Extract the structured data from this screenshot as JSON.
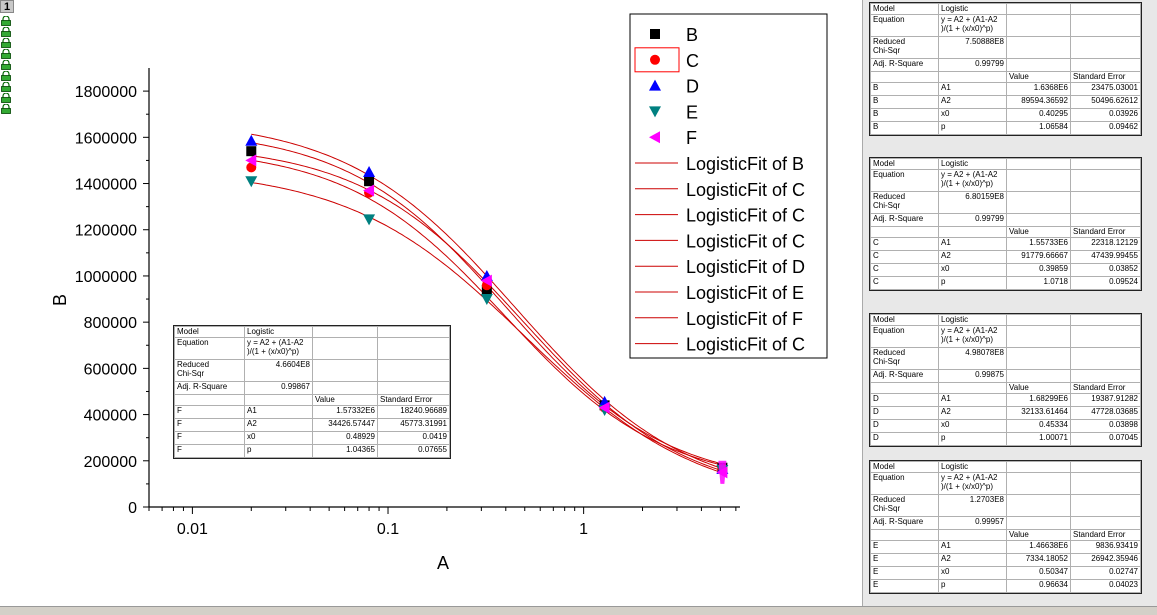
{
  "page_tab": "1",
  "chart_data": {
    "type": "scatter",
    "xlabel": "A",
    "ylabel": "B",
    "xscale": "log",
    "xlim": [
      0.006,
      6.3
    ],
    "ylim": [
      0,
      1900000
    ],
    "x_ticks": [
      "0.01",
      "0.1",
      "1"
    ],
    "y_ticks": [
      "0",
      "200000",
      "400000",
      "600000",
      "800000",
      "1000000",
      "1200000",
      "1400000",
      "1600000",
      "1800000"
    ],
    "series": [
      {
        "name": "B",
        "marker": "square",
        "color": "#000000",
        "x": [
          0.02,
          0.08,
          0.32,
          1.28,
          5.12
        ],
        "y": [
          1540000,
          1410000,
          940000,
          440000,
          170000
        ]
      },
      {
        "name": "C",
        "marker": "circle",
        "color": "#ff0000",
        "x": [
          0.02,
          0.08,
          0.32,
          1.28,
          5.12
        ],
        "y": [
          1470000,
          1360000,
          960000,
          430000,
          165000
        ]
      },
      {
        "name": "D",
        "marker": "triangle-up",
        "color": "#0000ff",
        "x": [
          0.02,
          0.08,
          0.32,
          1.28,
          5.12
        ],
        "y": [
          1585000,
          1450000,
          1000000,
          455000,
          165000
        ]
      },
      {
        "name": "E",
        "marker": "triangle-down",
        "color": "#008080",
        "x": [
          0.02,
          0.08,
          0.32,
          1.28,
          5.12
        ],
        "y": [
          1410000,
          1245000,
          900000,
          420000,
          160000
        ]
      },
      {
        "name": "F",
        "marker": "triangle-left",
        "color": "#ff00ff",
        "x": [
          0.02,
          0.08,
          0.32,
          1.28,
          5.12
        ],
        "y": [
          1500000,
          1370000,
          980000,
          430000,
          150000
        ]
      }
    ],
    "fits": [
      {
        "name": "LogisticFit of B",
        "A1": 1636800,
        "A2": 89594.36592,
        "x0": 0.40295,
        "p": 1.06584
      },
      {
        "name": "LogisticFit of C",
        "A1": 1557330,
        "A2": 91779.66667,
        "x0": 0.39859,
        "p": 1.0718
      },
      {
        "name": "LogisticFit of C",
        "A1": 1557330,
        "A2": 91779.66667,
        "x0": 0.39859,
        "p": 1.0718
      },
      {
        "name": "LogisticFit of C",
        "A1": 1557330,
        "A2": 91779.66667,
        "x0": 0.39859,
        "p": 1.0718
      },
      {
        "name": "LogisticFit of D",
        "A1": 1682990,
        "A2": 32133.61464,
        "x0": 0.45334,
        "p": 1.00071
      },
      {
        "name": "LogisticFit of E",
        "A1": 1466380,
        "A2": 7334.18052,
        "x0": 0.50347,
        "p": 0.96634
      },
      {
        "name": "LogisticFit of F",
        "A1": 1573320,
        "A2": 34426.57447,
        "x0": 0.48929,
        "p": 1.04365
      },
      {
        "name": "LogisticFit of C",
        "A1": 1557330,
        "A2": 91779.66667,
        "x0": 0.39859,
        "p": 1.0718
      }
    ],
    "fit_color": "#cc0000",
    "legend_position": "top-right"
  },
  "tables": {
    "common": {
      "model_label": "Model",
      "model_value": "Logistic",
      "equation_label": "Equation",
      "equation_line1": "y = A2 + (A1-A2",
      "equation_line2": ")/(1 + (x/x0)^p)",
      "chisq_label1": "Reduced",
      "chisq_label2": "Chi-Sqr",
      "adjr_label": "Adj. R-Square",
      "value_header": "Value",
      "stderr_header": "Standard Error"
    },
    "F": {
      "chisq": "4.6604E8",
      "adjr": "0.99867",
      "rows": [
        {
          "s": "F",
          "p": "A1",
          "v": "1.57332E6",
          "e": "18240.96689"
        },
        {
          "s": "F",
          "p": "A2",
          "v": "34426.57447",
          "e": "45773.31991"
        },
        {
          "s": "F",
          "p": "x0",
          "v": "0.48929",
          "e": "0.0419"
        },
        {
          "s": "F",
          "p": "p",
          "v": "1.04365",
          "e": "0.07655"
        }
      ]
    },
    "B": {
      "chisq": "7.50888E8",
      "adjr": "0.99799",
      "rows": [
        {
          "s": "B",
          "p": "A1",
          "v": "1.6368E6",
          "e": "23475.03001"
        },
        {
          "s": "B",
          "p": "A2",
          "v": "89594.36592",
          "e": "50496.62612"
        },
        {
          "s": "B",
          "p": "x0",
          "v": "0.40295",
          "e": "0.03926"
        },
        {
          "s": "B",
          "p": "p",
          "v": "1.06584",
          "e": "0.09462"
        }
      ]
    },
    "C": {
      "chisq": "6.80159E8",
      "adjr": "0.99799",
      "rows": [
        {
          "s": "C",
          "p": "A1",
          "v": "1.55733E6",
          "e": "22318.12129"
        },
        {
          "s": "C",
          "p": "A2",
          "v": "91779.66667",
          "e": "47439.99455"
        },
        {
          "s": "C",
          "p": "x0",
          "v": "0.39859",
          "e": "0.03852"
        },
        {
          "s": "C",
          "p": "p",
          "v": "1.0718",
          "e": "0.09524"
        }
      ]
    },
    "D": {
      "chisq": "4.98078E8",
      "adjr": "0.99875",
      "rows": [
        {
          "s": "D",
          "p": "A1",
          "v": "1.68299E6",
          "e": "19387.91282"
        },
        {
          "s": "D",
          "p": "A2",
          "v": "32133.61464",
          "e": "47728.03685"
        },
        {
          "s": "D",
          "p": "x0",
          "v": "0.45334",
          "e": "0.03898"
        },
        {
          "s": "D",
          "p": "p",
          "v": "1.00071",
          "e": "0.07045"
        }
      ]
    },
    "E": {
      "chisq": "1.2703E8",
      "adjr": "0.99957",
      "rows": [
        {
          "s": "E",
          "p": "A1",
          "v": "1.46638E6",
          "e": "9836.93419"
        },
        {
          "s": "E",
          "p": "A2",
          "v": "7334.18052",
          "e": "26942.35946"
        },
        {
          "s": "E",
          "p": "x0",
          "v": "0.50347",
          "e": "0.02747"
        },
        {
          "s": "E",
          "p": "p",
          "v": "0.96634",
          "e": "0.04023"
        }
      ]
    }
  }
}
